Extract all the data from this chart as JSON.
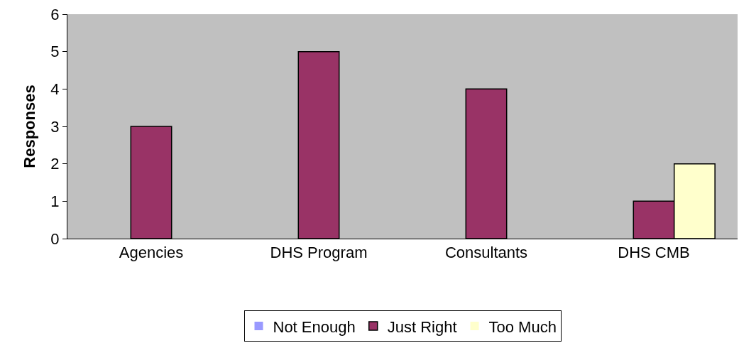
{
  "chart_data": {
    "type": "bar",
    "ylabel": "Responses",
    "categories": [
      "Agencies",
      "DHS Program",
      "Consultants",
      "DHS CMB"
    ],
    "series": [
      {
        "name": "Not Enough",
        "color": "#9999ff",
        "values": [
          0,
          0,
          0,
          0
        ]
      },
      {
        "name": "Just Right",
        "color": "#993366",
        "values": [
          3,
          5,
          4,
          1
        ]
      },
      {
        "name": "Too Much",
        "color": "#ffffcc",
        "values": [
          0,
          0,
          0,
          2
        ]
      }
    ],
    "ylim": [
      0,
      6
    ],
    "yticks": [
      0,
      1,
      2,
      3,
      4,
      5,
      6
    ],
    "grid": false,
    "legend": "bottom"
  }
}
